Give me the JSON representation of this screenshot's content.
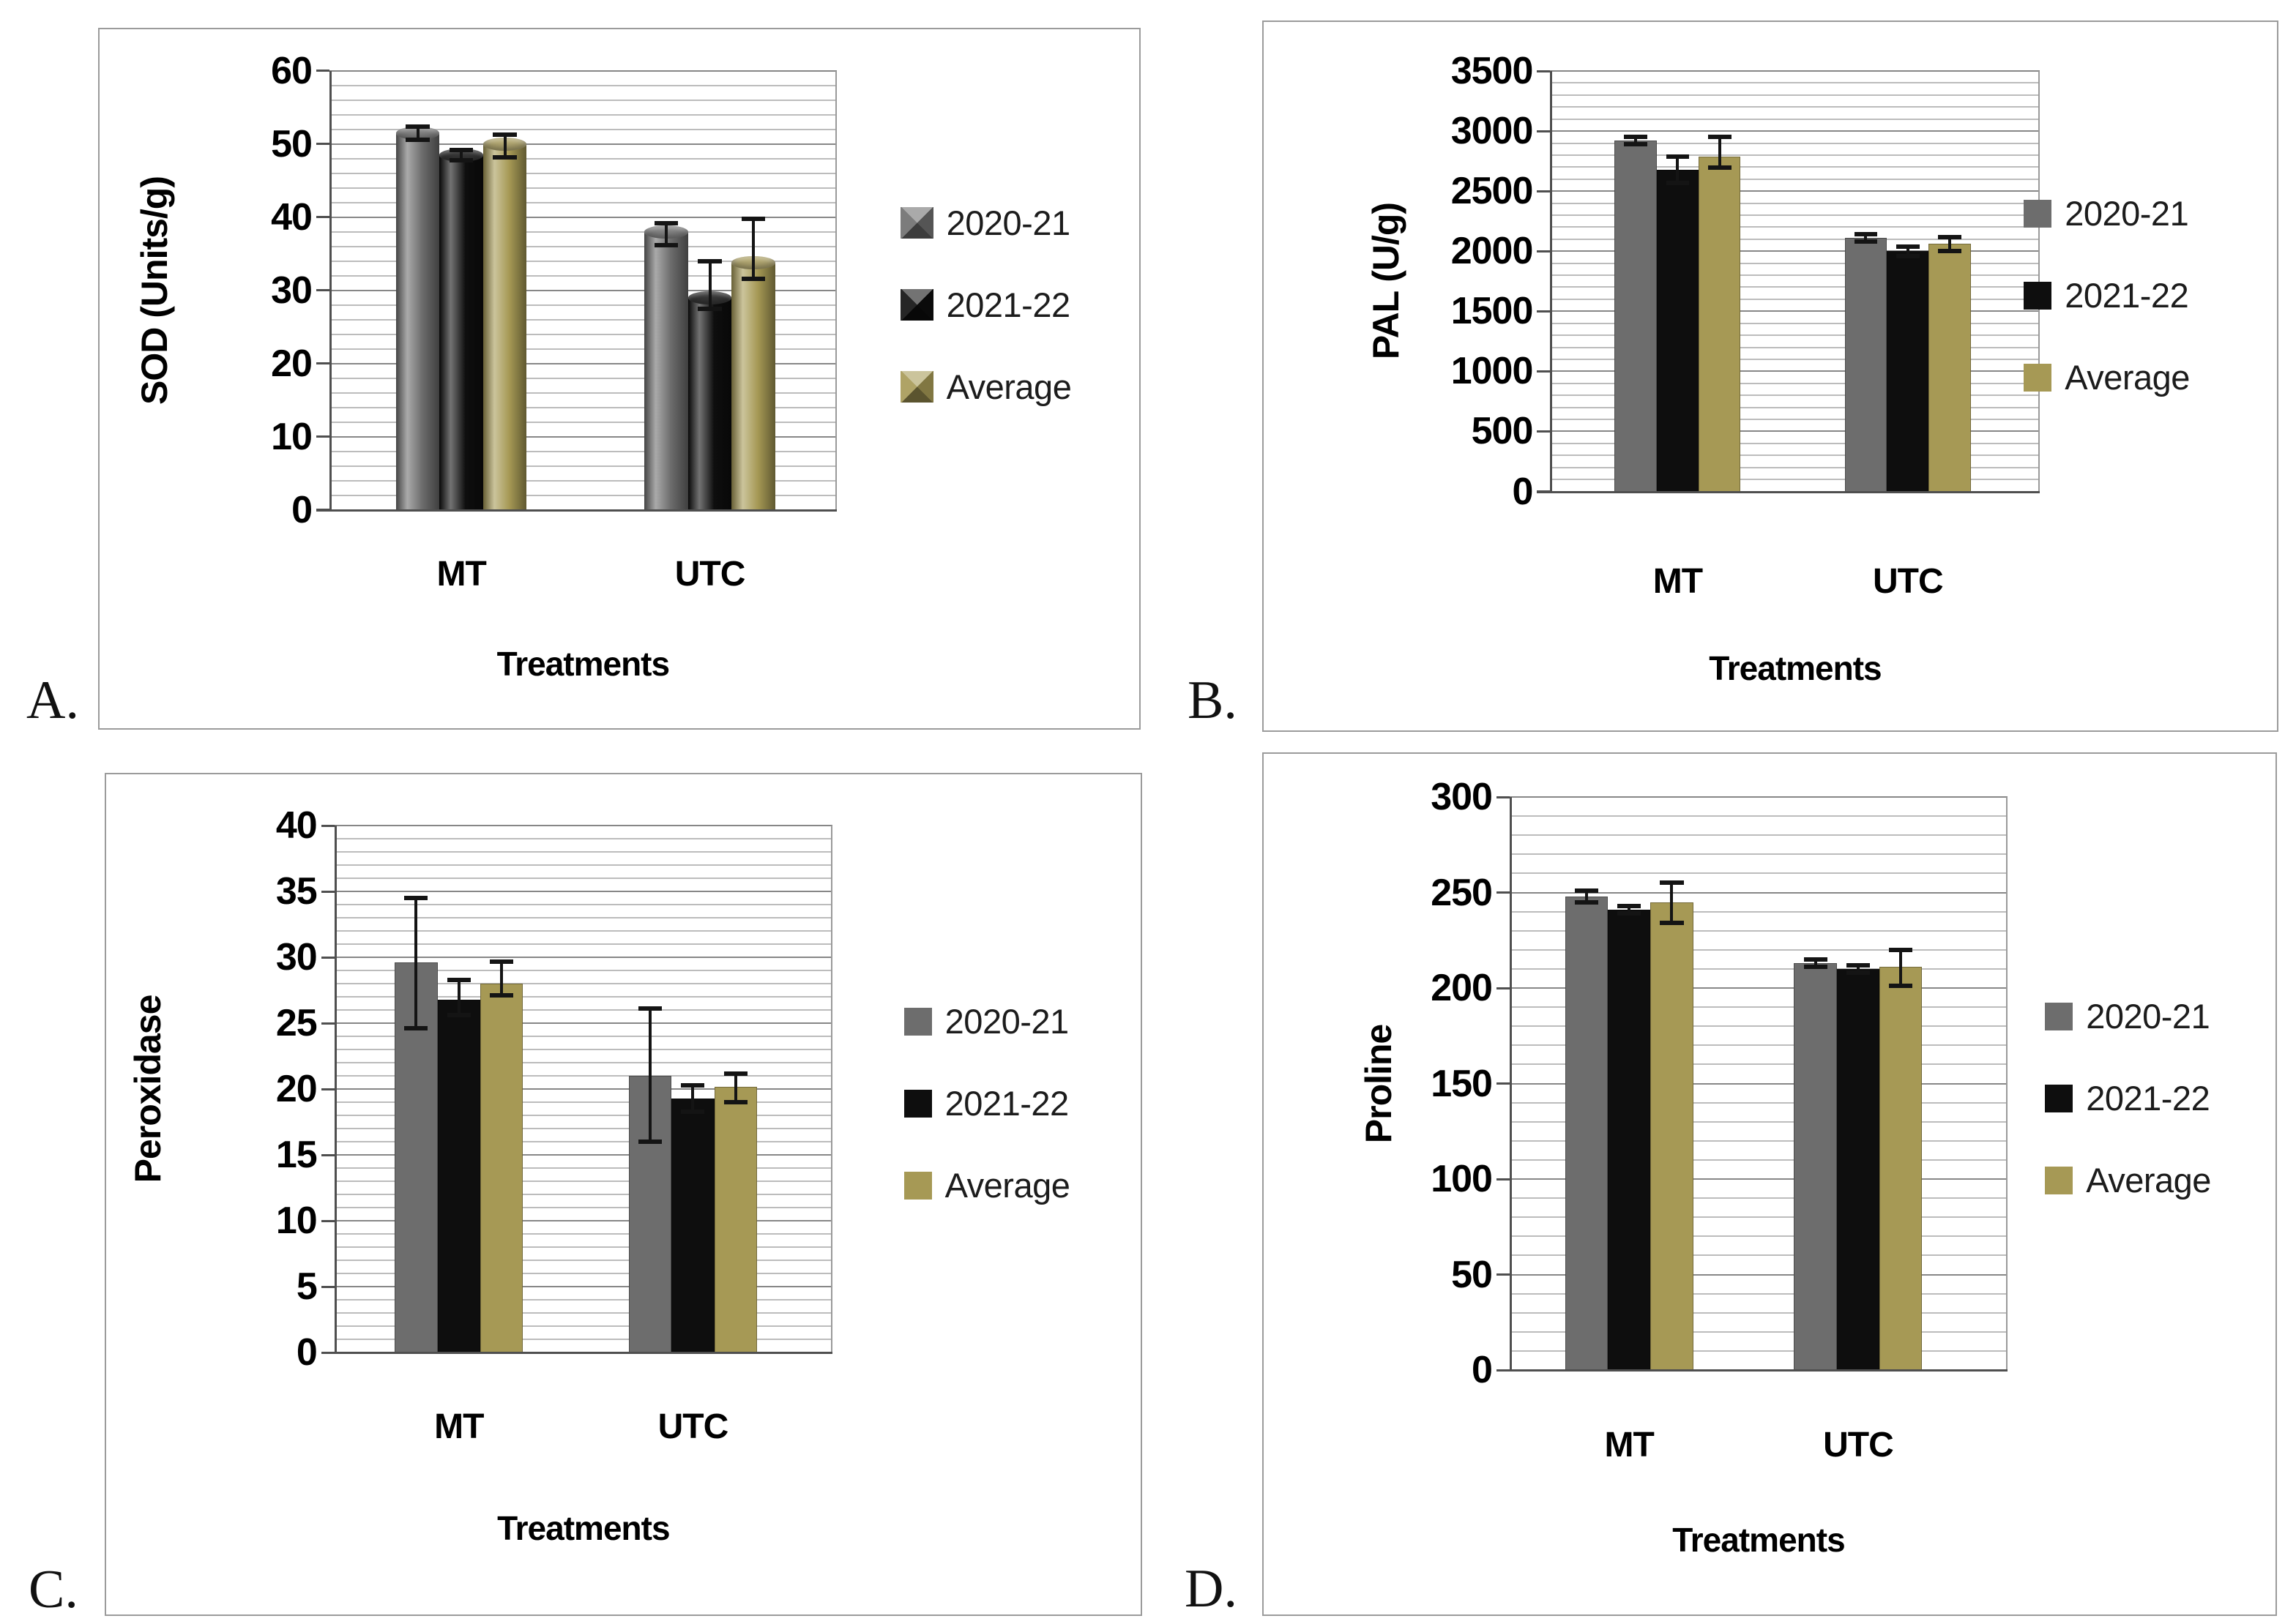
{
  "figure": {
    "background": "#ffffff",
    "panel_border_color": "#9b9b9b",
    "text_color": "#000000",
    "grid_minor_color": "#bcbcbc",
    "grid_major_color": "#878787",
    "axis_color": "#4f4f4f",
    "error_bar_color": "#141414"
  },
  "chart_data": [
    {
      "id": "A",
      "corner_label": "A.",
      "type": "bar",
      "bar_style": "cylinder",
      "title": "",
      "ylabel": "SOD (Units/g)",
      "xlabel": "Treatments",
      "categories": [
        "MT",
        "UTC"
      ],
      "ylim": [
        0,
        60
      ],
      "ytick_step": 10,
      "yminor_step": 2,
      "grid": "horizontal",
      "legend_position": "right",
      "series": [
        {
          "name": "2020-21",
          "color": "#6d6d6d",
          "values": [
            51.5,
            38.0
          ],
          "err_up": [
            0.9,
            1.2
          ],
          "err_down": [
            0.9,
            1.8
          ]
        },
        {
          "name": "2021-22",
          "color": "#0e0e0e",
          "values": [
            48.5,
            29.0
          ],
          "err_up": [
            0.7,
            5.0
          ],
          "err_down": [
            0.7,
            1.5
          ]
        },
        {
          "name": "Average",
          "color": "#a69955",
          "values": [
            50.0,
            33.8
          ],
          "err_up": [
            1.3,
            6.0
          ],
          "err_down": [
            1.8,
            2.2
          ]
        }
      ]
    },
    {
      "id": "B",
      "corner_label": "B.",
      "type": "bar",
      "bar_style": "flat",
      "title": "",
      "ylabel": "PAL (U/g)",
      "xlabel": "Treatments",
      "categories": [
        "MT",
        "UTC"
      ],
      "ylim": [
        0,
        3500
      ],
      "ytick_step": 500,
      "yminor_step": 100,
      "grid": "horizontal",
      "legend_position": "right",
      "series": [
        {
          "name": "2020-21",
          "color": "#6d6d6d",
          "values": [
            2920,
            2110
          ],
          "err_up": [
            30,
            30
          ],
          "err_down": [
            30,
            30
          ]
        },
        {
          "name": "2021-22",
          "color": "#0e0e0e",
          "values": [
            2680,
            2000
          ],
          "err_up": [
            110,
            40
          ],
          "err_down": [
            110,
            40
          ]
        },
        {
          "name": "Average",
          "color": "#a69955",
          "values": [
            2790,
            2060
          ],
          "err_up": [
            165,
            60
          ],
          "err_down": [
            95,
            60
          ]
        }
      ]
    },
    {
      "id": "C",
      "corner_label": "C.",
      "type": "bar",
      "bar_style": "flat",
      "title": "",
      "ylabel": "Peroxidase",
      "xlabel": "Treatments",
      "categories": [
        "MT",
        "UTC"
      ],
      "ylim": [
        0,
        40
      ],
      "ytick_step": 5,
      "yminor_step": 1,
      "grid": "horizontal",
      "legend_position": "right",
      "series": [
        {
          "name": "2020-21",
          "color": "#6d6d6d",
          "values": [
            29.6,
            21.0
          ],
          "err_up": [
            4.9,
            5.1
          ],
          "err_down": [
            5.0,
            5.0
          ]
        },
        {
          "name": "2021-22",
          "color": "#0e0e0e",
          "values": [
            26.8,
            19.3
          ],
          "err_up": [
            1.5,
            1.0
          ],
          "err_down": [
            1.2,
            1.0
          ]
        },
        {
          "name": "Average",
          "color": "#a69955",
          "values": [
            28.0,
            20.2
          ],
          "err_up": [
            1.7,
            1.0
          ],
          "err_down": [
            0.9,
            1.2
          ]
        }
      ]
    },
    {
      "id": "D",
      "corner_label": "D.",
      "type": "bar",
      "bar_style": "flat",
      "title": "",
      "ylabel": "Proline",
      "xlabel": "Treatments",
      "categories": [
        "MT",
        "UTC"
      ],
      "ylim": [
        0,
        300
      ],
      "ytick_step": 50,
      "yminor_step": 10,
      "grid": "horizontal",
      "legend_position": "right",
      "series": [
        {
          "name": "2020-21",
          "color": "#6d6d6d",
          "values": [
            248,
            213
          ],
          "err_up": [
            3,
            2
          ],
          "err_down": [
            3,
            2
          ]
        },
        {
          "name": "2021-22",
          "color": "#0e0e0e",
          "values": [
            241,
            210
          ],
          "err_up": [
            2,
            2
          ],
          "err_down": [
            2,
            2
          ]
        },
        {
          "name": "Average",
          "color": "#a69955",
          "values": [
            245,
            211
          ],
          "err_up": [
            10,
            9
          ],
          "err_down": [
            11,
            10
          ]
        }
      ]
    }
  ]
}
